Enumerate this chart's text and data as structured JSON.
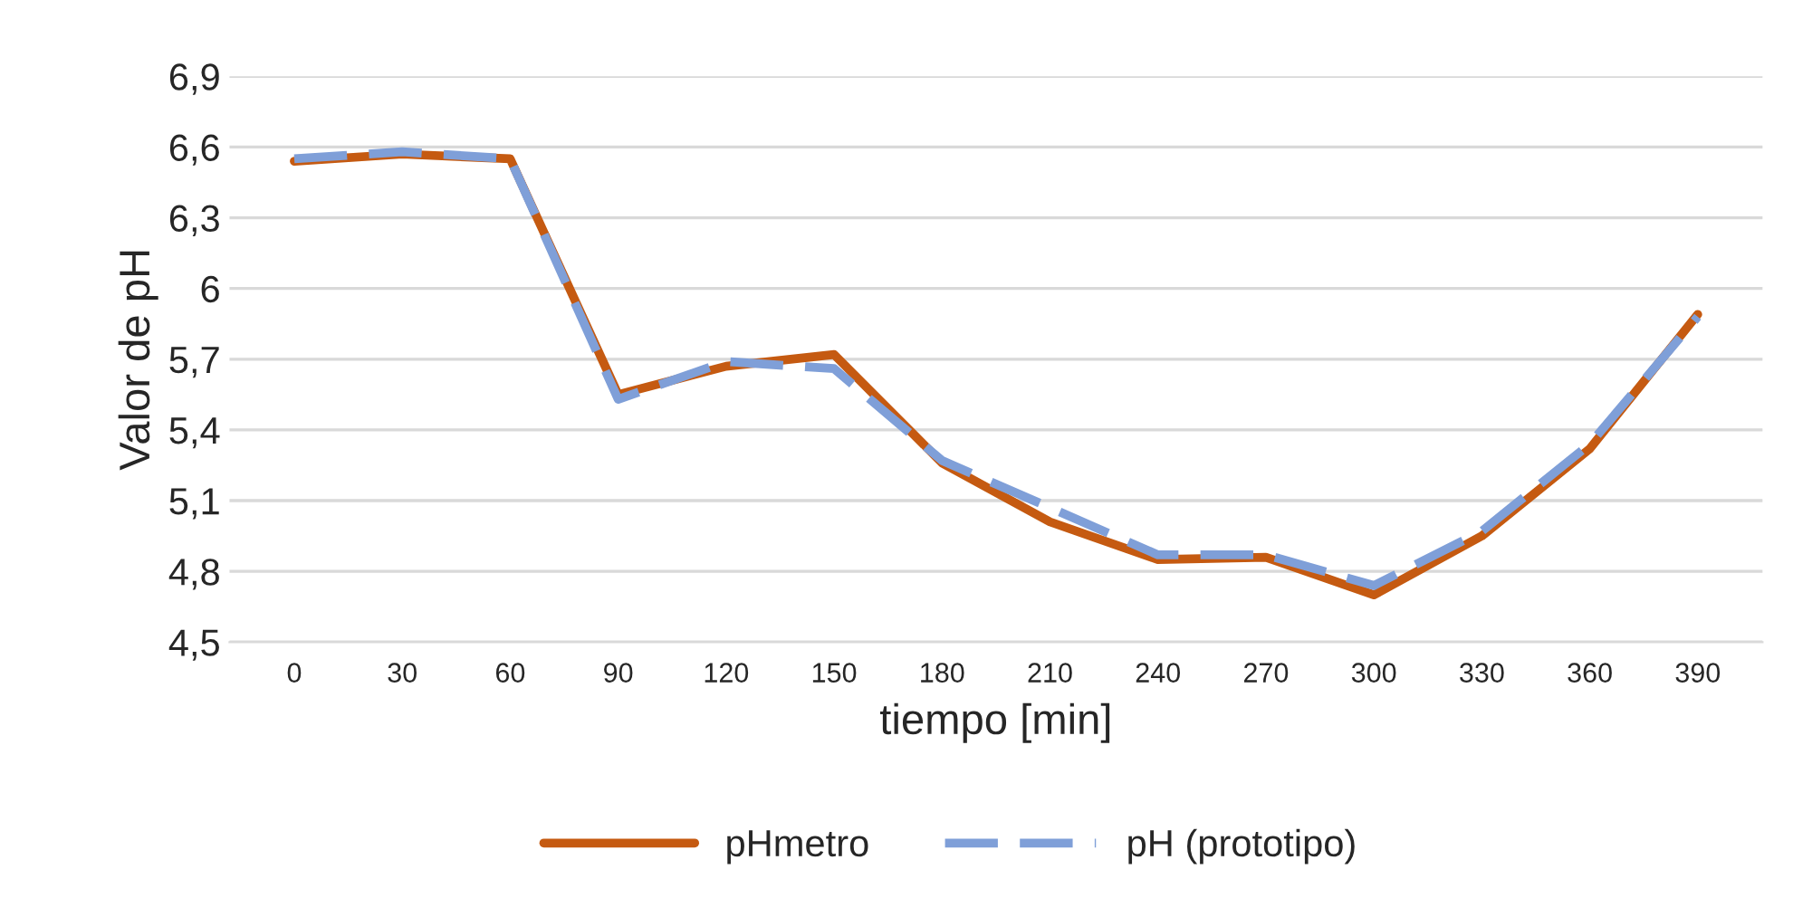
{
  "chart_data": {
    "type": "line",
    "xlabel": "tiempo [min]",
    "ylabel": "Valor de pH",
    "categories": [
      "0",
      "30",
      "60",
      "90",
      "120",
      "150",
      "180",
      "210",
      "240",
      "270",
      "300",
      "330",
      "360",
      "390"
    ],
    "series": [
      {
        "name": "pHmetro",
        "color": "#c55a11",
        "line_style": "solid",
        "values": [
          6.54,
          6.57,
          6.55,
          5.55,
          5.67,
          5.72,
          5.26,
          5.01,
          4.85,
          4.86,
          4.7,
          4.95,
          5.32,
          5.89
        ]
      },
      {
        "name": "pH (prototipo)",
        "color": "#7f9fd8",
        "line_style": "dashed",
        "values": [
          6.55,
          6.58,
          6.55,
          5.53,
          5.69,
          5.66,
          5.27,
          5.07,
          4.87,
          4.87,
          4.74,
          4.97,
          5.34,
          5.88
        ]
      }
    ],
    "ylim": [
      4.5,
      6.9
    ],
    "yticks": [
      {
        "value": 4.5,
        "label": "4,5"
      },
      {
        "value": 4.8,
        "label": "4,8"
      },
      {
        "value": 5.1,
        "label": "5,1"
      },
      {
        "value": 5.4,
        "label": "5,4"
      },
      {
        "value": 5.7,
        "label": "5,7"
      },
      {
        "value": 6,
        "label": "6"
      },
      {
        "value": 6.3,
        "label": "6,3"
      },
      {
        "value": 6.6,
        "label": "6,6"
      },
      {
        "value": 6.9,
        "label": "6,9"
      }
    ],
    "grid": "y",
    "legend": "bottom",
    "marker": "none"
  }
}
